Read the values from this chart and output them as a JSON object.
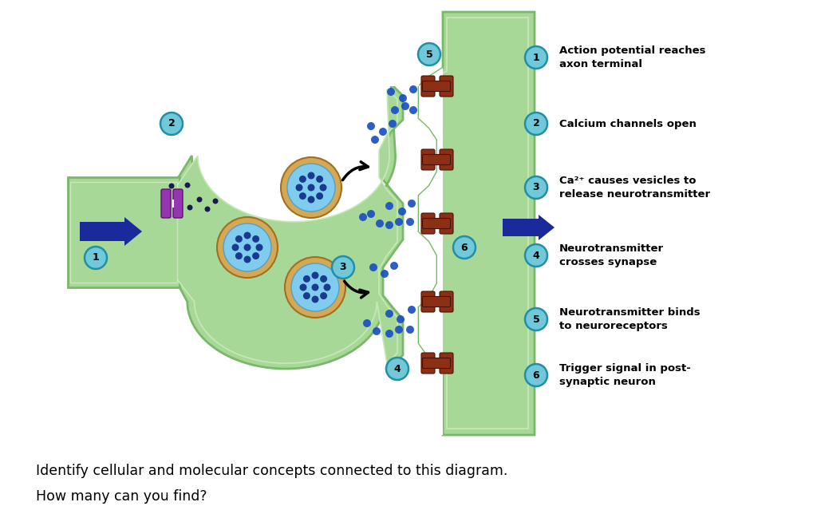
{
  "bg_color": "#ffffff",
  "cell_green": "#a8d898",
  "cell_green_dark": "#78b868",
  "cell_green_light": "#c8e8b8",
  "cell_inner_green": "#b8e0a8",
  "synapse_white": "#ffffff",
  "vesicle_outer": "#d4a855",
  "vesicle_inner": "#80ccee",
  "vesicle_dot": "#1a3a90",
  "nt_dot": "#1a50c0",
  "ca_dot": "#1a1a50",
  "receptor_color": "#8b3015",
  "ca_channel_color": "#8030a0",
  "arrow_color": "#1a2a9a",
  "label_fill": "#70c8d8",
  "label_edge": "#2090a8",
  "legend_items": [
    {
      "num": "1",
      "text": "Action potential reaches\naxon terminal"
    },
    {
      "num": "2",
      "text": "Calcium channels open"
    },
    {
      "num": "3",
      "text": "Ca²⁺ causes vesicles to\nrelease neurotransmitter"
    },
    {
      "num": "4",
      "text": "Neurotransmitter\ncrosses synapse"
    },
    {
      "num": "5",
      "text": "Neurotransmitter binds\nto neuroreceptors"
    },
    {
      "num": "6",
      "text": "Trigger signal in post-\nsynaptic neuron"
    }
  ],
  "bottom_line1": "Identify cellular and molecular concepts connected to this diagram.",
  "bottom_line2": "How many can you find?"
}
